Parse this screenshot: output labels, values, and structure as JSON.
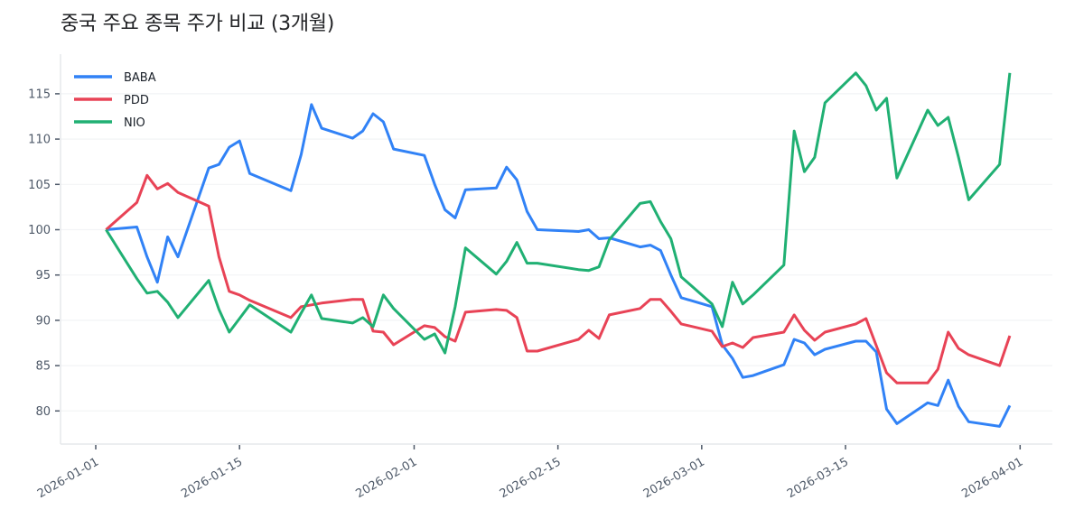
{
  "title": "중국 주요 종목 주가 비교 (3개월)",
  "chart_data": {
    "type": "line",
    "title": "중국 주요 종목 주가 비교 (3개월)",
    "xlabel": "",
    "ylabel": "",
    "ylim": [
      76.3,
      119.3
    ],
    "yticks": [
      80,
      85,
      90,
      95,
      100,
      105,
      110,
      115
    ],
    "xticks": [
      "2026-01-01",
      "2026-01-15",
      "2026-02-01",
      "2026-02-15",
      "2026-03-01",
      "2026-03-15",
      "2026-04-01"
    ],
    "grid": "horizontal",
    "legend_position": "upper left",
    "x": [
      "2026-01-02",
      "2026-01-05",
      "2026-01-06",
      "2026-01-07",
      "2026-01-08",
      "2026-01-09",
      "2026-01-12",
      "2026-01-13",
      "2026-01-14",
      "2026-01-15",
      "2026-01-16",
      "2026-01-20",
      "2026-01-21",
      "2026-01-22",
      "2026-01-23",
      "2026-01-26",
      "2026-01-27",
      "2026-01-28",
      "2026-01-29",
      "2026-01-30",
      "2026-02-02",
      "2026-02-03",
      "2026-02-04",
      "2026-02-05",
      "2026-02-06",
      "2026-02-09",
      "2026-02-10",
      "2026-02-11",
      "2026-02-12",
      "2026-02-13",
      "2026-02-17",
      "2026-02-18",
      "2026-02-19",
      "2026-02-20",
      "2026-02-23",
      "2026-02-24",
      "2026-02-25",
      "2026-02-26",
      "2026-02-27",
      "2026-03-02",
      "2026-03-03",
      "2026-03-04",
      "2026-03-05",
      "2026-03-06",
      "2026-03-09",
      "2026-03-10",
      "2026-03-11",
      "2026-03-12",
      "2026-03-13",
      "2026-03-16",
      "2026-03-17",
      "2026-03-18",
      "2026-03-19",
      "2026-03-20",
      "2026-03-23",
      "2026-03-24",
      "2026-03-25",
      "2026-03-26",
      "2026-03-27",
      "2026-03-30",
      "2026-03-31"
    ],
    "series": [
      {
        "name": "BABA",
        "color": "#3182f6",
        "values": [
          100,
          100.3,
          97,
          94.2,
          99.2,
          97,
          106.8,
          107.2,
          109.1,
          109.8,
          106.2,
          104.3,
          108.3,
          113.8,
          111.2,
          110.1,
          110.9,
          112.8,
          111.9,
          108.9,
          108.2,
          105,
          102.2,
          101.3,
          104.4,
          104.6,
          106.9,
          105.5,
          102,
          100,
          99.8,
          100,
          99,
          99.1,
          98.1,
          98.3,
          97.7,
          95,
          92.5,
          91.5,
          87.3,
          85.8,
          83.7,
          83.9,
          85.1,
          87.9,
          87.5,
          86.2,
          86.8,
          87.7,
          87.7,
          86.5,
          80.2,
          78.6,
          80.9,
          80.6,
          83.4,
          80.5,
          78.8,
          78.3,
          80.6
        ]
      },
      {
        "name": "PDD",
        "color": "#e84356",
        "values": [
          100,
          103,
          106,
          104.5,
          105.1,
          104.1,
          102.6,
          97,
          93.2,
          92.8,
          92.2,
          90.3,
          91.5,
          91.7,
          91.9,
          92.3,
          92.3,
          88.8,
          88.7,
          87.3,
          89.4,
          89.2,
          88.2,
          87.7,
          90.9,
          91.2,
          91.1,
          90.3,
          86.6,
          86.6,
          87.9,
          88.9,
          88,
          90.6,
          91.3,
          92.3,
          92.3,
          91,
          89.6,
          88.8,
          87.1,
          87.5,
          87,
          88.1,
          88.7,
          90.6,
          88.9,
          87.8,
          88.7,
          89.6,
          90.2,
          87.2,
          84.2,
          83.1,
          83.1,
          84.6,
          88.7,
          86.9,
          86.2,
          85,
          88.3
        ]
      },
      {
        "name": "NIO",
        "color": "#20b073",
        "values": [
          100,
          94.6,
          93,
          93.2,
          92,
          90.3,
          94.4,
          91.2,
          88.7,
          90.2,
          91.7,
          88.7,
          90.8,
          92.8,
          90.2,
          89.7,
          90.3,
          89.3,
          92.8,
          91.3,
          87.9,
          88.5,
          86.4,
          91.5,
          98,
          95.1,
          96.5,
          98.6,
          96.3,
          96.3,
          95.6,
          95.5,
          95.9,
          98.9,
          102.9,
          103.1,
          100.9,
          99,
          94.8,
          91.8,
          89.3,
          94.2,
          91.8,
          92.8,
          96.1,
          110.9,
          106.4,
          108,
          114,
          117.3,
          115.9,
          113.2,
          114.5,
          105.7,
          113.2,
          111.5,
          112.4,
          108,
          103.3,
          107.2,
          117.3
        ]
      }
    ]
  },
  "legend": [
    {
      "label": "BABA",
      "color": "#3182f6"
    },
    {
      "label": "PDD",
      "color": "#e84356"
    },
    {
      "label": "NIO",
      "color": "#20b073"
    }
  ],
  "style": {
    "grid_color": "#f2f4f6",
    "axis_color": "#e5e8eb",
    "tick_color": "#4e5968"
  }
}
